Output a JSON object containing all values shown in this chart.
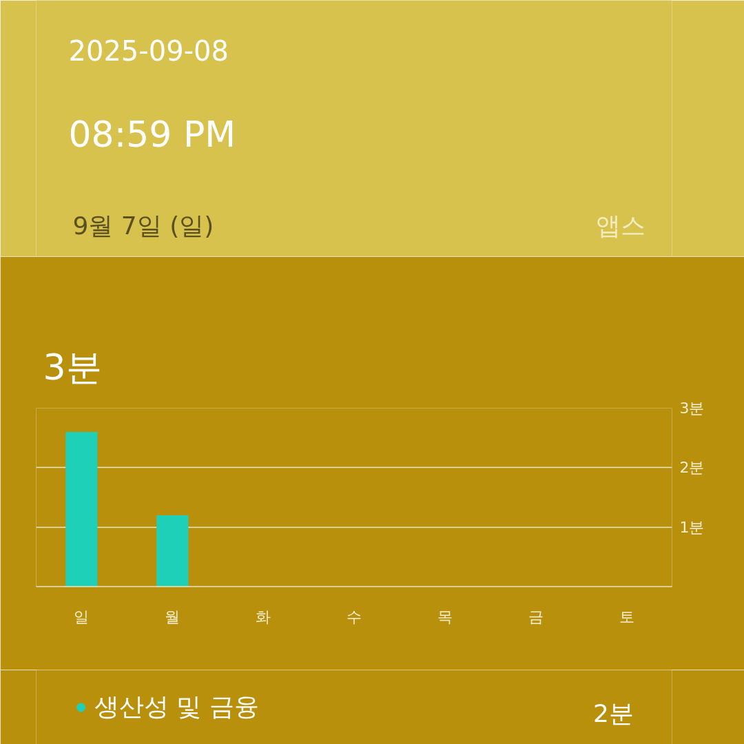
{
  "chart_data": {
    "type": "bar",
    "title": "3분",
    "categories": [
      "일",
      "월",
      "화",
      "수",
      "목",
      "금",
      "토"
    ],
    "series": [
      {
        "name": "생산성 및 금융",
        "color": "#1fd0b8",
        "values": [
          2.6,
          1.2,
          0,
          0,
          0,
          0,
          0
        ]
      }
    ],
    "ylim": [
      0,
      3
    ],
    "yticks": [
      {
        "value": 0,
        "label": null
      },
      {
        "value": 1,
        "label": "1분"
      },
      {
        "value": 2,
        "label": "2분"
      },
      {
        "value": 3,
        "label": "3분"
      }
    ],
    "grid": "y",
    "legend": "bottom",
    "annotations": [
      "2025-09-08",
      "08:59 PM",
      "9월 7일 (일)",
      "앱스",
      "2분"
    ]
  }
}
